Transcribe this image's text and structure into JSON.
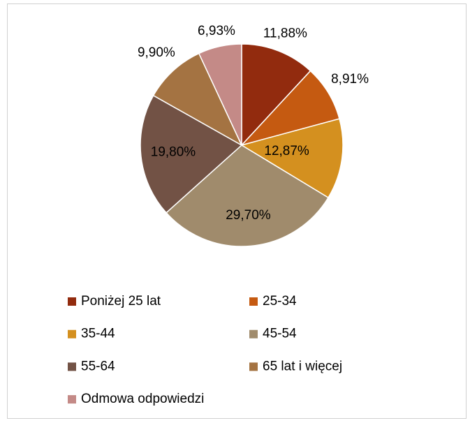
{
  "chart_data": {
    "type": "pie",
    "categories": [
      "Poniżej 25 lat",
      "25-34",
      "35-44",
      "45-54",
      "55-64",
      "65 lat i więcej",
      "Odmowa odpowiedzi"
    ],
    "values": [
      11.88,
      8.91,
      12.87,
      29.7,
      19.8,
      9.9,
      6.93
    ],
    "value_labels": [
      "11,88%",
      "8,91%",
      "12,87%",
      "29,70%",
      "19,80%",
      "9,90%",
      "6,93%"
    ],
    "colors": [
      "#922b0e",
      "#c55a11",
      "#d4901f",
      "#a08b6c",
      "#725245",
      "#a47342",
      "#c48a87"
    ],
    "legend": "bottom"
  }
}
